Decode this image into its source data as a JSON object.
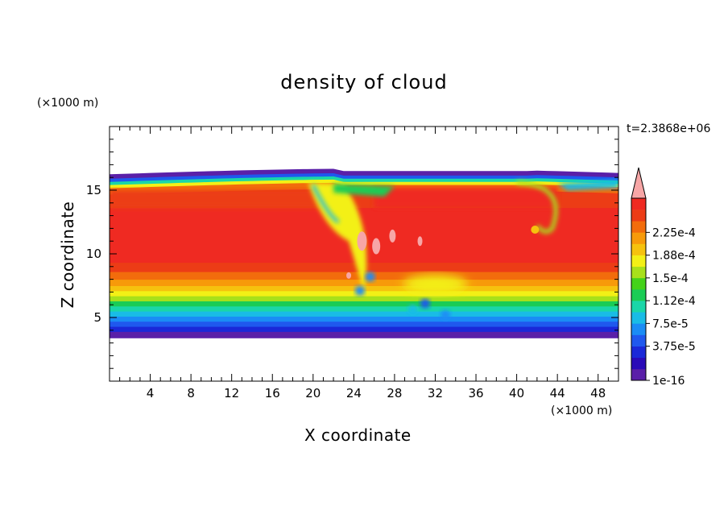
{
  "chart_data": {
    "type": "heatmap",
    "title": "density of cloud",
    "xlabel": "X coordinate",
    "ylabel": "Z coordinate",
    "x_unit": "(×1000 m)",
    "y_unit": "(×1000 m)",
    "time_label": "t=2.3868e+06",
    "xlim": [
      0,
      50
    ],
    "ylim": [
      0,
      20
    ],
    "x_ticks": [
      4,
      8,
      12,
      16,
      20,
      24,
      28,
      32,
      36,
      40,
      44,
      48
    ],
    "y_ticks": [
      5,
      10,
      15
    ],
    "colorbar": {
      "labels": [
        "2.25e-4",
        "1.88e-4",
        "1.5e-4",
        "1.12e-4",
        "7.5e-5",
        "3.75e-5",
        "1e-16"
      ],
      "label_values": [
        0.000225,
        0.000188,
        0.00015,
        0.000112,
        7.5e-05,
        3.75e-05,
        1e-16
      ],
      "colors": [
        "#5a1fa8",
        "#2a0ab8",
        "#1a28d8",
        "#1f58ee",
        "#1a8cf5",
        "#19bce6",
        "#1ad6a8",
        "#1acc55",
        "#44d21a",
        "#a8e01a",
        "#f3f016",
        "#f6c20e",
        "#f79a0a",
        "#f26c0c",
        "#ec3c16",
        "#ef2a22"
      ],
      "extend_color": "#f7a6a6"
    },
    "cloud_layer": {
      "base_z": 3.4,
      "top_z_approx": 16.5,
      "core_z_range": [
        8,
        14
      ]
    }
  }
}
